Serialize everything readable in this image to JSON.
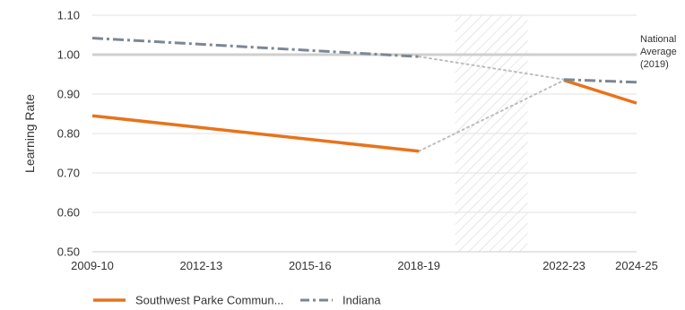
{
  "chart_data": {
    "type": "line",
    "x_ticks": [
      "2009-10",
      "2012-13",
      "2015-16",
      "2018-19",
      "2022-23",
      "2024-25"
    ],
    "ylabel": "Learning Rate",
    "ylim": [
      0.5,
      1.1
    ],
    "y_ticks": [
      "0.50",
      "0.60",
      "0.70",
      "0.80",
      "0.90",
      "1.00",
      "1.10"
    ],
    "grid": "horizontal",
    "reference_line": {
      "value": 1.0,
      "label_lines": [
        "National",
        "Average",
        "(2019)"
      ]
    },
    "shaded_period": [
      "2019-20",
      "2021-22"
    ],
    "series": [
      {
        "name": "Southwest Parke Commun...",
        "color": "#e8731a",
        "style": "solid",
        "segments": [
          [
            [
              "2009-10",
              0.845
            ],
            [
              "2018-19",
              0.755
            ]
          ],
          [
            [
              "2022-23",
              0.935
            ],
            [
              "2024-25",
              0.877
            ]
          ]
        ],
        "gap_bridge": [
          [
            "2018-19",
            0.755
          ],
          [
            "2022-23",
            0.935
          ]
        ]
      },
      {
        "name": "Indiana",
        "color": "#7b8794",
        "style": "dashdot",
        "segments": [
          [
            [
              "2009-10",
              1.042
            ],
            [
              "2018-19",
              0.995
            ]
          ],
          [
            [
              "2022-23",
              0.937
            ],
            [
              "2024-25",
              0.93
            ]
          ]
        ],
        "gap_bridge": [
          [
            "2018-19",
            0.995
          ],
          [
            "2022-23",
            0.937
          ]
        ]
      }
    ],
    "legend": {
      "position": "bottom-left",
      "entries": [
        "Southwest Parke Commun...",
        "Indiana"
      ]
    }
  }
}
